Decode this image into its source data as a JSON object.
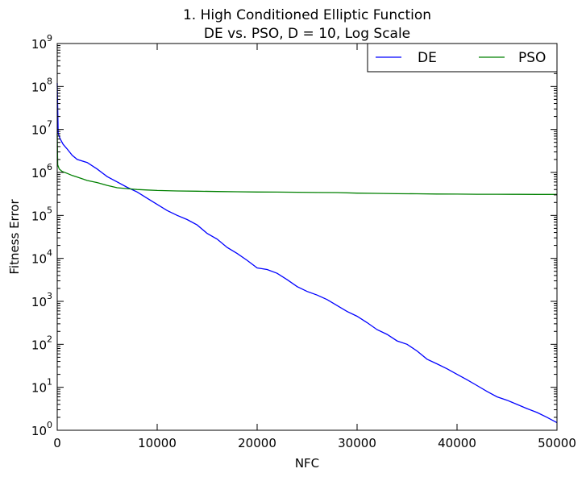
{
  "chart_data": {
    "type": "line",
    "title_line1": "1.   High Conditioned Elliptic Function",
    "title_line2": "DE vs. PSO, D = 10, Log Scale",
    "xlabel": "NFC",
    "ylabel": "Fitness Error",
    "xlim": [
      0,
      50000
    ],
    "ylim": [
      1,
      1000000000
    ],
    "yscale": "log",
    "grid": false,
    "legend_placement": "top-right",
    "x_ticks": [
      "0",
      "10000",
      "20000",
      "30000",
      "40000",
      "50000"
    ],
    "y_ticks": [
      {
        "base": "10",
        "exp": "0"
      },
      {
        "base": "10",
        "exp": "1"
      },
      {
        "base": "10",
        "exp": "2"
      },
      {
        "base": "10",
        "exp": "3"
      },
      {
        "base": "10",
        "exp": "4"
      },
      {
        "base": "10",
        "exp": "5"
      },
      {
        "base": "10",
        "exp": "6"
      },
      {
        "base": "10",
        "exp": "7"
      },
      {
        "base": "10",
        "exp": "8"
      },
      {
        "base": "10",
        "exp": "9"
      }
    ],
    "series": [
      {
        "name": "DE",
        "color": "#0000ff",
        "x": [
          0,
          100,
          300,
          600,
          1000,
          1500,
          2000,
          3000,
          4000,
          5000,
          6000,
          7000,
          8000,
          9000,
          10000,
          11000,
          12000,
          13000,
          14000,
          15000,
          16000,
          17000,
          18000,
          19000,
          20000,
          21000,
          22000,
          23000,
          24000,
          25000,
          26000,
          27000,
          28000,
          29000,
          30000,
          31000,
          32000,
          33000,
          34000,
          35000,
          36000,
          37000,
          38000,
          39000,
          40000,
          41000,
          42000,
          43000,
          44000,
          45000,
          46000,
          47000,
          48000,
          49000,
          50000
        ],
        "y": [
          120000000,
          8000000,
          6000000,
          4500000,
          3500000,
          2500000,
          2000000,
          1700000,
          1200000,
          800000,
          600000,
          450000,
          350000,
          250000,
          180000,
          130000,
          100000,
          80000,
          60000,
          38000,
          28000,
          18000,
          13000,
          9000,
          6000,
          5500,
          4500,
          3200,
          2200,
          1700,
          1400,
          1100,
          800,
          580,
          450,
          320,
          220,
          170,
          120,
          100,
          70,
          45,
          35,
          27,
          20,
          15,
          11,
          8,
          6,
          5,
          4,
          3.2,
          2.6,
          2.0,
          1.5
        ]
      },
      {
        "name": "PSO",
        "color": "#008000",
        "x": [
          0,
          50,
          200,
          500,
          1000,
          1500,
          2000,
          3000,
          4000,
          5000,
          6000,
          7000,
          8000,
          9000,
          10000,
          12000,
          14000,
          16000,
          18000,
          20000,
          22000,
          24000,
          26000,
          28000,
          30000,
          32000,
          34000,
          36000,
          38000,
          40000,
          42000,
          44000,
          46000,
          48000,
          50000
        ],
        "y": [
          8000000,
          1500000,
          1200000,
          1050000,
          950000,
          850000,
          780000,
          650000,
          580000,
          500000,
          440000,
          420000,
          400000,
          390000,
          380000,
          370000,
          365000,
          360000,
          355000,
          350000,
          348000,
          345000,
          342000,
          340000,
          330000,
          325000,
          320000,
          318000,
          315000,
          313000,
          311000,
          310000,
          309000,
          308000,
          308000
        ]
      }
    ]
  }
}
